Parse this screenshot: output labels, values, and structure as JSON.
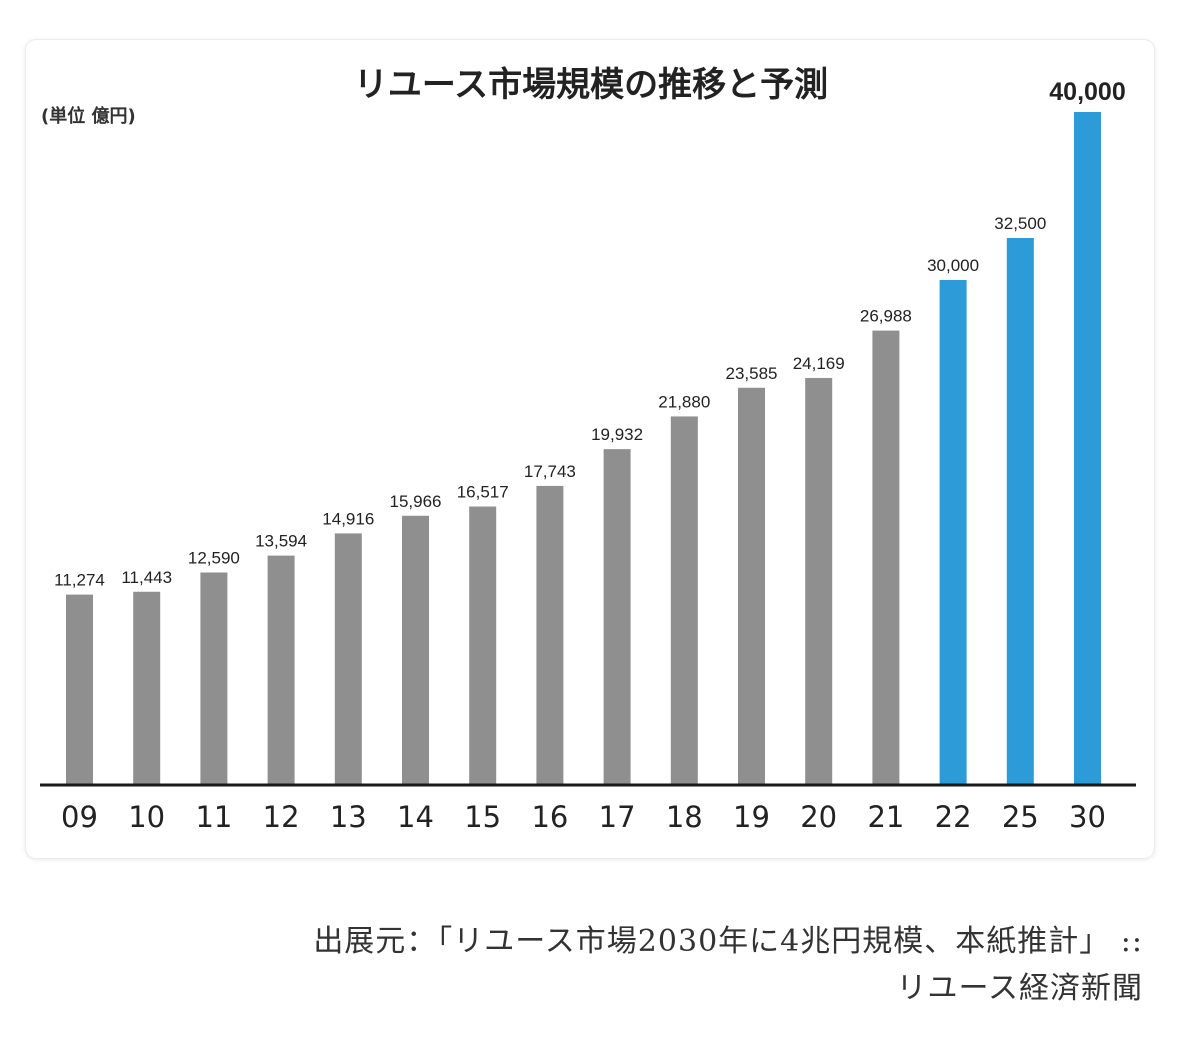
{
  "chart_data": {
    "type": "bar",
    "title": "リユース市場規模の推移と予測",
    "unit_label": "(単位 億円)",
    "categories": [
      "09",
      "10",
      "11",
      "12",
      "13",
      "14",
      "15",
      "16",
      "17",
      "18",
      "19",
      "20",
      "21",
      "22",
      "25",
      "30"
    ],
    "values": [
      11274,
      11443,
      12590,
      13594,
      14916,
      15966,
      16517,
      17743,
      19932,
      21880,
      23585,
      24169,
      26988,
      30000,
      32500,
      40000
    ],
    "value_labels": [
      "11,274",
      "11,443",
      "12,590",
      "13,594",
      "14,916",
      "15,966",
      "16,517",
      "17,743",
      "19,932",
      "21,880",
      "23,585",
      "24,169",
      "26,988",
      "30,000",
      "32,500",
      "40,000"
    ],
    "forecast_from_index": 13,
    "ylim": [
      0,
      40000
    ],
    "colors": {
      "actual": "#8f8f8f",
      "forecast": "#2d9bd7",
      "axis": "#1a1a1a"
    },
    "xlabel": "",
    "ylabel": "",
    "grid": false
  },
  "source": {
    "line1": "出展元：「リユース市場2030年に4兆円規模、本紙推計」 ::",
    "line2": "リユース経済新聞"
  }
}
